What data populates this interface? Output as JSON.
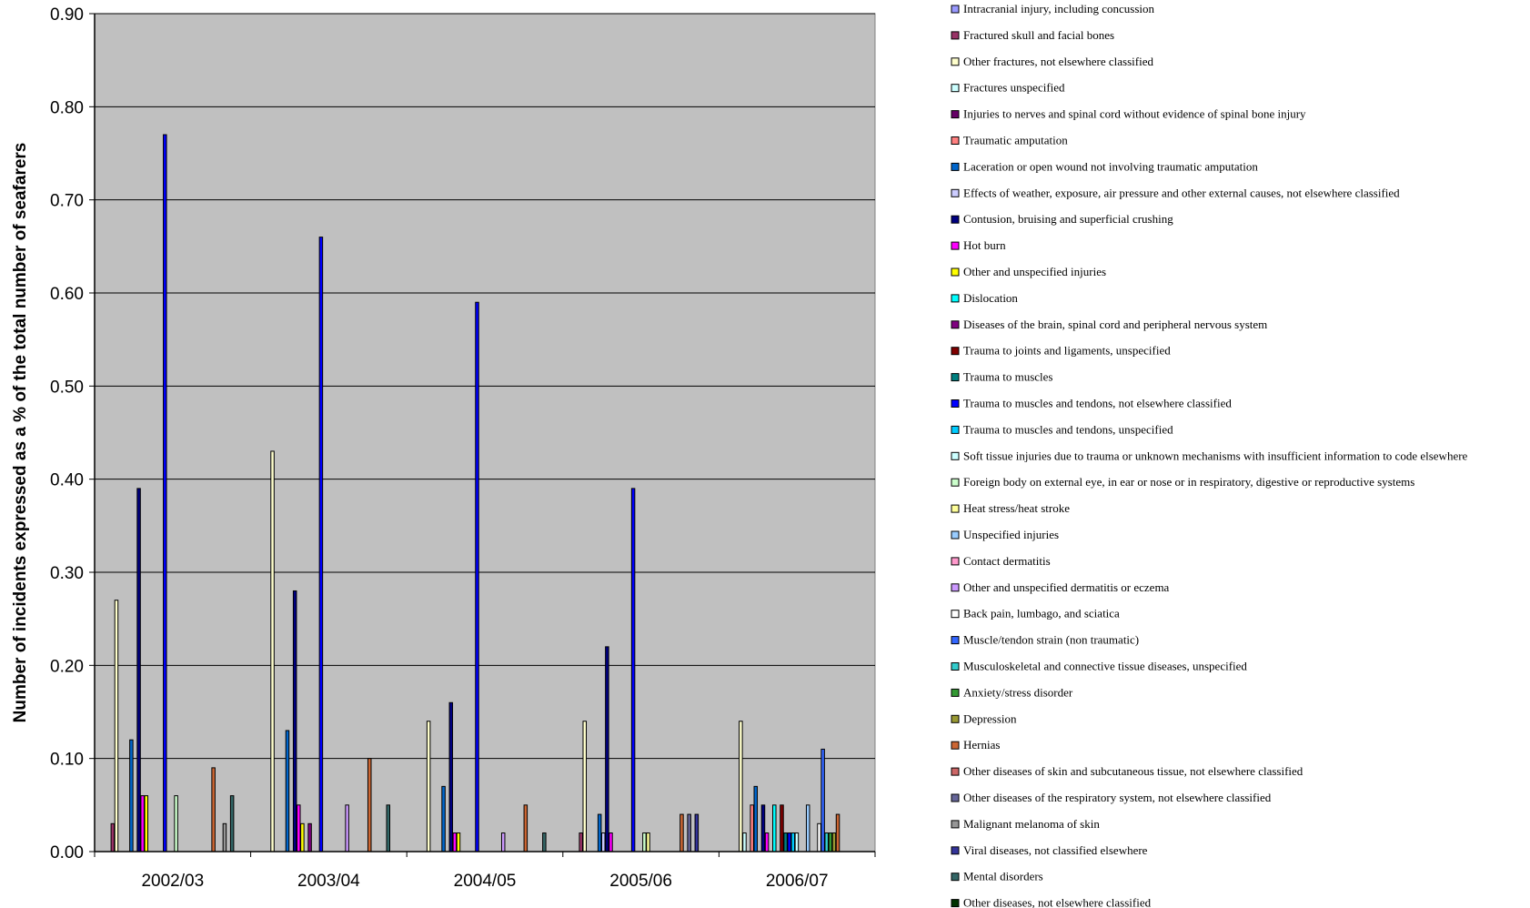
{
  "chart_data": {
    "type": "bar",
    "title": "",
    "xlabel": "",
    "ylabel": "Number of incidents expressed as a % of the total number of seafarers",
    "ylim": [
      0,
      0.9
    ],
    "yticks": [
      "0.00",
      "0.10",
      "0.20",
      "0.30",
      "0.40",
      "0.50",
      "0.60",
      "0.70",
      "0.80",
      "0.90"
    ],
    "grid": true,
    "legend_position": "right",
    "plot_background": "#c0c0c0",
    "categories": [
      "2002/03",
      "2003/04",
      "2004/05",
      "2005/06",
      "2006/07"
    ],
    "series": [
      {
        "name": "Intracranial injury, including concussion",
        "color": "#9999ff",
        "values": [
          0,
          0,
          0,
          0,
          0
        ]
      },
      {
        "name": "Fractured skull and facial bones",
        "color": "#993366",
        "values": [
          0.03,
          0,
          0,
          0.02,
          0
        ]
      },
      {
        "name": "Other fractures, not elsewhere classified",
        "color": "#ffffcc",
        "values": [
          0.27,
          0.43,
          0.14,
          0.14,
          0.14
        ]
      },
      {
        "name": "Fractures unspecified",
        "color": "#ccffff",
        "values": [
          0,
          0,
          0,
          0,
          0.02
        ]
      },
      {
        "name": "Injuries to nerves and spinal cord without evidence of spinal bone injury",
        "color": "#660066",
        "values": [
          0,
          0,
          0,
          0,
          0
        ]
      },
      {
        "name": "Traumatic amputation",
        "color": "#ff8080",
        "values": [
          0,
          0,
          0,
          0,
          0.05
        ]
      },
      {
        "name": "Laceration or open wound not involving traumatic amputation",
        "color": "#0066cc",
        "values": [
          0.12,
          0.13,
          0.07,
          0.04,
          0.07
        ]
      },
      {
        "name": "Effects of weather, exposure, air pressure and other external causes, not elsewhere classified",
        "color": "#ccccff",
        "values": [
          0,
          0,
          0,
          0.02,
          0
        ]
      },
      {
        "name": "Contusion, bruising and superficial crushing",
        "color": "#000080",
        "values": [
          0.39,
          0.28,
          0.16,
          0.22,
          0.05
        ]
      },
      {
        "name": "Hot burn",
        "color": "#ff00ff",
        "values": [
          0.06,
          0.05,
          0.02,
          0.02,
          0.02
        ]
      },
      {
        "name": "Other and unspecified injuries",
        "color": "#ffff00",
        "values": [
          0.06,
          0.03,
          0.02,
          0,
          0
        ]
      },
      {
        "name": "Dislocation",
        "color": "#00ffff",
        "values": [
          0,
          0,
          0,
          0,
          0.05
        ]
      },
      {
        "name": "Diseases of the brain, spinal cord and peripheral nervous system",
        "color": "#800080",
        "values": [
          0,
          0.03,
          0,
          0,
          0
        ]
      },
      {
        "name": "Trauma to joints and ligaments, unspecified",
        "color": "#800000",
        "values": [
          0,
          0,
          0,
          0,
          0.05
        ]
      },
      {
        "name": "Trauma to muscles",
        "color": "#008080",
        "values": [
          0,
          0,
          0,
          0,
          0.02
        ]
      },
      {
        "name": "Trauma to muscles and tendons, not elsewhere classified",
        "color": "#0000ff",
        "values": [
          0.77,
          0.66,
          0.59,
          0.39,
          0.02
        ]
      },
      {
        "name": "Trauma to muscles and tendons, unspecified",
        "color": "#00ccff",
        "values": [
          0,
          0,
          0,
          0,
          0.02
        ]
      },
      {
        "name": "Soft tissue injuries due to trauma or unknown mechanisms with insufficient information to code elsewhere",
        "color": "#ccffff",
        "values": [
          0,
          0,
          0,
          0,
          0.02
        ]
      },
      {
        "name": "Foreign body on external eye, in ear or nose or in respiratory, digestive or reproductive systems",
        "color": "#ccffcc",
        "values": [
          0.06,
          0,
          0,
          0.02,
          0
        ]
      },
      {
        "name": "Heat stress/heat stroke",
        "color": "#ffff99",
        "values": [
          0,
          0,
          0,
          0.02,
          0
        ]
      },
      {
        "name": "Unspecified injuries",
        "color": "#99ccff",
        "values": [
          0,
          0,
          0,
          0,
          0.05
        ]
      },
      {
        "name": "Contact dermatitis",
        "color": "#ff99cc",
        "values": [
          0,
          0,
          0,
          0,
          0
        ]
      },
      {
        "name": "Other and unspecified dermatitis or eczema",
        "color": "#cc99ff",
        "values": [
          0,
          0.05,
          0.02,
          0,
          0
        ]
      },
      {
        "name": "Back pain, lumbago, and sciatica",
        "color": "#ffffff",
        "values": [
          0,
          0,
          0,
          0,
          0.03
        ]
      },
      {
        "name": "Muscle/tendon strain (non traumatic)",
        "color": "#3366ff",
        "values": [
          0,
          0,
          0,
          0,
          0.11
        ]
      },
      {
        "name": "Musculoskeletal and connective tissue diseases, unspecified",
        "color": "#33cccc",
        "values": [
          0,
          0,
          0,
          0,
          0.02
        ]
      },
      {
        "name": "Anxiety/stress disorder",
        "color": "#339933",
        "values": [
          0,
          0,
          0,
          0,
          0.02
        ]
      },
      {
        "name": "Depression",
        "color": "#999933",
        "values": [
          0,
          0,
          0,
          0,
          0.02
        ]
      },
      {
        "name": "Hernias",
        "color": "#cc6633",
        "values": [
          0.09,
          0.1,
          0.05,
          0.04,
          0.04
        ]
      },
      {
        "name": "Other diseases of skin and subcutaneous tissue, not elsewhere classified",
        "color": "#cc6666",
        "values": [
          0,
          0,
          0,
          0,
          0
        ]
      },
      {
        "name": "Other diseases of the respiratory system, not elsewhere classified",
        "color": "#666699",
        "values": [
          0,
          0,
          0,
          0.04,
          0
        ]
      },
      {
        "name": "Malignant melanoma of skin",
        "color": "#969696",
        "values": [
          0.03,
          0,
          0,
          0,
          0
        ]
      },
      {
        "name": "Viral diseases, not classified elsewhere",
        "color": "#333399",
        "values": [
          0,
          0,
          0,
          0.04,
          0
        ]
      },
      {
        "name": "Mental disorders",
        "color": "#336666",
        "values": [
          0.06,
          0.05,
          0.02,
          0,
          0
        ]
      },
      {
        "name": "Other diseases, not elsewhere classified",
        "color": "#003300",
        "values": [
          0,
          0,
          0,
          0,
          0
        ]
      }
    ]
  }
}
